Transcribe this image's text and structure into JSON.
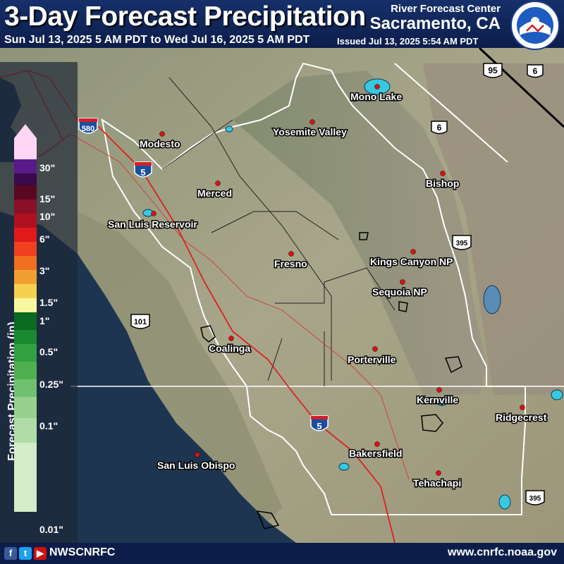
{
  "header": {
    "title": "3-Day Forecast Precipitation",
    "date_range": "Sun Jul 13, 2025 5 AM PDT to Wed Jul 16, 2025 5 AM PDT",
    "issued": "Issued Jul 13, 2025 5:54 AM PDT",
    "agency": "River Forecast Center",
    "location": "Sacramento, CA",
    "logo_text": "NATIONAL WEATHER SERVICE"
  },
  "legend": {
    "title": "Forecast Precipitation (in)",
    "ticks": [
      "30\"",
      "15\"",
      "10\"",
      "6\"",
      "3\"",
      "1.5\"",
      "1\"",
      "0.5\"",
      "0.25\"",
      "0.1\"",
      "0.01\""
    ]
  },
  "places": {
    "modesto": "Modesto",
    "merced": "Merced",
    "san_luis": "San Luis Reservoir",
    "fresno": "Fresno",
    "coalinga": "Coalinga",
    "slo": "San Luis Obispo",
    "yosemite": "Yosemite Valley",
    "mono": "Mono Lake",
    "bishop": "Bishop",
    "kings": "Kings Canyon NP",
    "sequoia": "Sequoia NP",
    "porterville": "Porterville",
    "kernville": "Kernville",
    "bakersfield": "Bakersfield",
    "tehachapi": "Tehachapi",
    "ridgecrest": "Ridgecrest"
  },
  "shields": {
    "i580": "580",
    "i5_north": "5",
    "i5_south": "5",
    "us101": "101",
    "us395_north": "395",
    "us395_south": "395",
    "us95": "95",
    "us6_east": "6",
    "us6": "6"
  },
  "footer": {
    "handle": "NWSCNRFC",
    "website": "www.cnrfc.noaa.gov"
  },
  "colors": {
    "header_bg": "#17306a",
    "city_marker": "#e01010",
    "highway": "#e02020",
    "lake": "#38c8e0",
    "ocean": "#1d3550"
  }
}
